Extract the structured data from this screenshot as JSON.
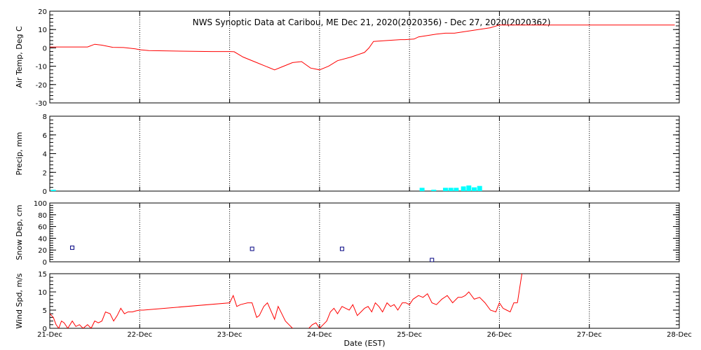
{
  "chart_data": {
    "type": "line",
    "title": "NWS Synoptic Data at Caribou, ME    Dec 21, 2020(2020356) - Dec 27, 2020(2020362)",
    "xlabel": "Date (EST)",
    "x_range_days": [
      0,
      7
    ],
    "x_tick_labels": [
      "21-Dec",
      "22-Dec",
      "23-Dec",
      "24-Dec",
      "25-Dec",
      "26-Dec",
      "27-Dec",
      "28-Dec"
    ],
    "grid": "dotted vertical lines at each day",
    "panels": [
      {
        "name": "air-temp",
        "type": "line",
        "ylabel": "Air Temp, Deg C",
        "ylim": [
          -30,
          20
        ],
        "y_ticks": [
          -30,
          -20,
          -10,
          0,
          10,
          20
        ],
        "color": "#ff0000",
        "x": [
          0,
          0.2,
          0.42,
          0.5,
          0.58,
          0.7,
          0.82,
          0.95,
          1.0,
          1.1,
          1.5,
          1.8,
          2.0,
          2.05,
          2.15,
          2.3,
          2.5,
          2.6,
          2.7,
          2.8,
          2.9,
          3.0,
          3.1,
          3.2,
          3.35,
          3.5,
          3.55,
          3.6,
          3.75,
          3.9,
          3.95,
          4.05,
          4.1,
          4.3,
          4.4,
          4.5,
          4.9,
          5.0,
          5.5,
          6.0,
          6.3,
          6.6,
          6.95
        ],
        "values": [
          0.5,
          0.5,
          0.5,
          2,
          1.5,
          0.3,
          0.2,
          -0.5,
          -1.0,
          -1.5,
          -1.8,
          -2,
          -2,
          -2.1,
          -5,
          -8,
          -12,
          -10,
          -8,
          -7.5,
          -11,
          -12,
          -10,
          -7,
          -5,
          -2.5,
          0,
          3.5,
          4,
          4.5,
          4.5,
          4.8,
          6,
          7.5,
          8,
          8,
          11,
          12.5,
          12.5,
          12.5,
          12.5,
          12.5,
          12.5
        ]
      },
      {
        "name": "precip",
        "type": "bar",
        "ylabel": "Precip, mm",
        "ylim": [
          0,
          8
        ],
        "y_ticks": [
          0,
          2,
          4,
          6,
          8
        ],
        "color": "#00ffff",
        "x": [
          0.04,
          4.14,
          4.27,
          4.4,
          4.46,
          4.52,
          4.6,
          4.66,
          4.72,
          4.78
        ],
        "values": [
          0.15,
          0.35,
          0.15,
          0.35,
          0.35,
          0.35,
          0.5,
          0.6,
          0.4,
          0.55
        ]
      },
      {
        "name": "snow-depth",
        "type": "scatter",
        "ylabel": "Snow Dep, cm",
        "ylim": [
          0,
          100
        ],
        "y_ticks": [
          0,
          20,
          40,
          60,
          80,
          100
        ],
        "color": "#000080",
        "x": [
          0.25,
          2.25,
          3.25,
          4.25
        ],
        "values": [
          24,
          22,
          22,
          3
        ]
      },
      {
        "name": "wind-speed",
        "type": "line",
        "ylabel": "Wind Spd, m/s",
        "ylim": [
          0,
          15
        ],
        "y_ticks": [
          0,
          5,
          10,
          15
        ],
        "color": "#ff0000",
        "segments": [
          {
            "x": [
              0,
              0.04,
              0.07,
              0.1,
              0.13,
              0.16,
              0.2,
              0.25,
              0.29,
              0.33,
              0.37,
              0.42,
              0.46,
              0.5,
              0.54,
              0.58,
              0.62,
              0.67,
              0.71,
              0.75,
              0.79,
              0.83,
              0.87,
              0.92,
              0.96,
              1.0,
              1.04,
              2.0,
              2.04,
              2.08,
              2.12,
              2.2,
              2.25,
              2.3,
              2.33,
              2.38,
              2.42,
              2.5,
              2.54,
              2.58,
              2.62,
              2.66,
              2.7,
              2.75
            ],
            "values": [
              4,
              3,
              1,
              0,
              2,
              1.5,
              0,
              2,
              0.5,
              1,
              0,
              1,
              0,
              2,
              1.5,
              2,
              4.5,
              4,
              2,
              3.5,
              5.5,
              4,
              4.5,
              4.5,
              4.8,
              5,
              5,
              7,
              9,
              6,
              6.5,
              7,
              7,
              3,
              3.5,
              6,
              7,
              2.5,
              6,
              4,
              2,
              1,
              0,
              -1
            ]
          },
          {
            "x": [
              2.88,
              2.92,
              2.96,
              3.0,
              3.04,
              3.08,
              3.12,
              3.16,
              3.2,
              3.25,
              3.29,
              3.33,
              3.37,
              3.42,
              3.46,
              3.5,
              3.54,
              3.58,
              3.62,
              3.66,
              3.7,
              3.75,
              3.79,
              3.83,
              3.87,
              3.92,
              3.96,
              4.0,
              4.04,
              4.1,
              4.15,
              4.2,
              4.25,
              4.3,
              4.36,
              4.42,
              4.48,
              4.54,
              4.58,
              4.62,
              4.66,
              4.72,
              4.78,
              4.84,
              4.9,
              4.96,
              5.0,
              5.04,
              5.08,
              5.12,
              5.16,
              5.2
            ],
            "values": [
              0,
              1,
              1.5,
              0,
              1,
              2,
              4.5,
              5.5,
              4,
              6,
              5.5,
              5,
              6.5,
              3.5,
              4.5,
              5.5,
              6,
              4.5,
              7,
              6,
              4.5,
              7,
              6,
              6.5,
              5,
              7,
              7,
              6.5,
              8,
              9,
              8.5,
              9.5,
              7,
              6.5,
              8,
              9,
              7,
              8.5,
              8.5,
              9,
              10,
              8,
              8.5,
              7,
              5,
              4.5,
              7,
              5.5,
              5,
              4.5,
              7,
              7
            ]
          },
          {
            "x": [
              5.2,
              5.25,
              5.3
            ],
            "values": [
              7,
              15,
              17
            ]
          }
        ]
      }
    ]
  }
}
